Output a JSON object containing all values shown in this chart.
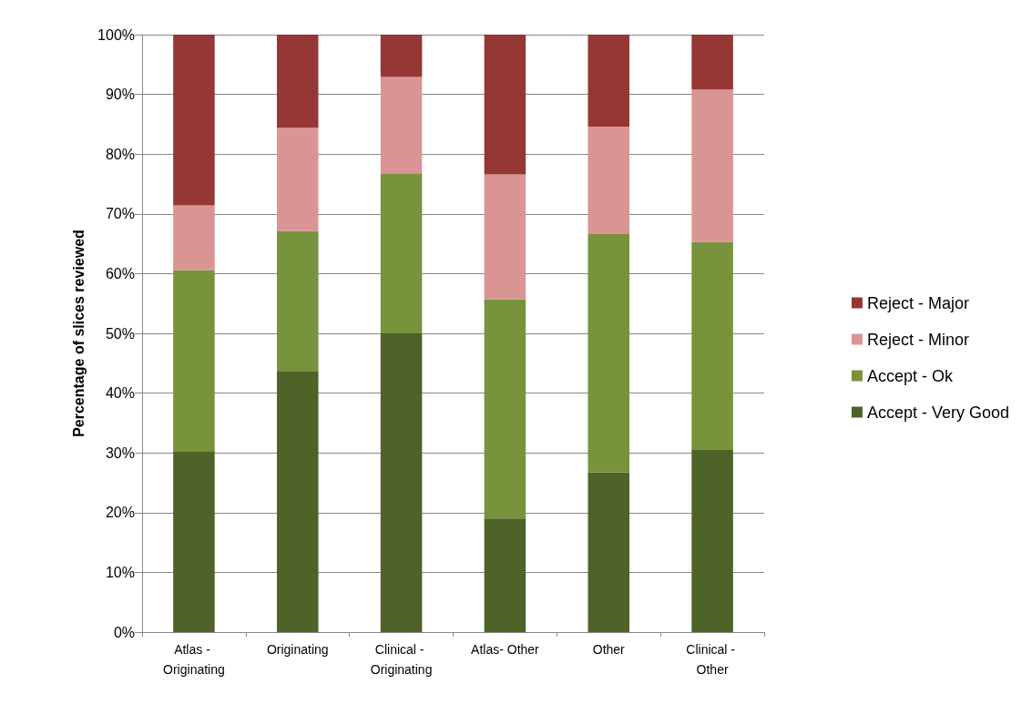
{
  "chart_data": {
    "type": "bar",
    "stacked": true,
    "ylabel": "Percentage of slices reviewed",
    "categories": [
      "Atlas - Originating",
      "Originating",
      "Clinical - Originating",
      "Atlas- Other",
      "Other",
      "Clinical - Other"
    ],
    "series": [
      {
        "name": "Accept - Very Good",
        "color": "#4f6228",
        "values": [
          30.2,
          43.7,
          50,
          19,
          26.7,
          30.6
        ]
      },
      {
        "name": "Accept - Ok",
        "color": "#77933c",
        "values": [
          30.4,
          23.4,
          26.8,
          36.7,
          39.9,
          34.7
        ]
      },
      {
        "name": "Reject - Minor",
        "color": "#d99594",
        "values": [
          10.8,
          17.3,
          16.1,
          20.9,
          18,
          25.5
        ]
      },
      {
        "name": "Reject - Major",
        "color": "#953735",
        "values": [
          28.6,
          15.6,
          7.1,
          23.4,
          15.4,
          9.2
        ]
      }
    ],
    "ylim": [
      0,
      100
    ],
    "yticks": [
      {
        "value": 0,
        "label": "0%"
      },
      {
        "value": 10,
        "label": "10%"
      },
      {
        "value": 20,
        "label": "20%"
      },
      {
        "value": 30,
        "label": "30%"
      },
      {
        "value": 40,
        "label": "40%"
      },
      {
        "value": 50,
        "label": "50%"
      },
      {
        "value": 60,
        "label": "60%"
      },
      {
        "value": 70,
        "label": "70%"
      },
      {
        "value": 80,
        "label": "80%"
      },
      {
        "value": 90,
        "label": "90%"
      },
      {
        "value": 100,
        "label": "100%"
      }
    ],
    "grid": "y",
    "legend": "right"
  }
}
